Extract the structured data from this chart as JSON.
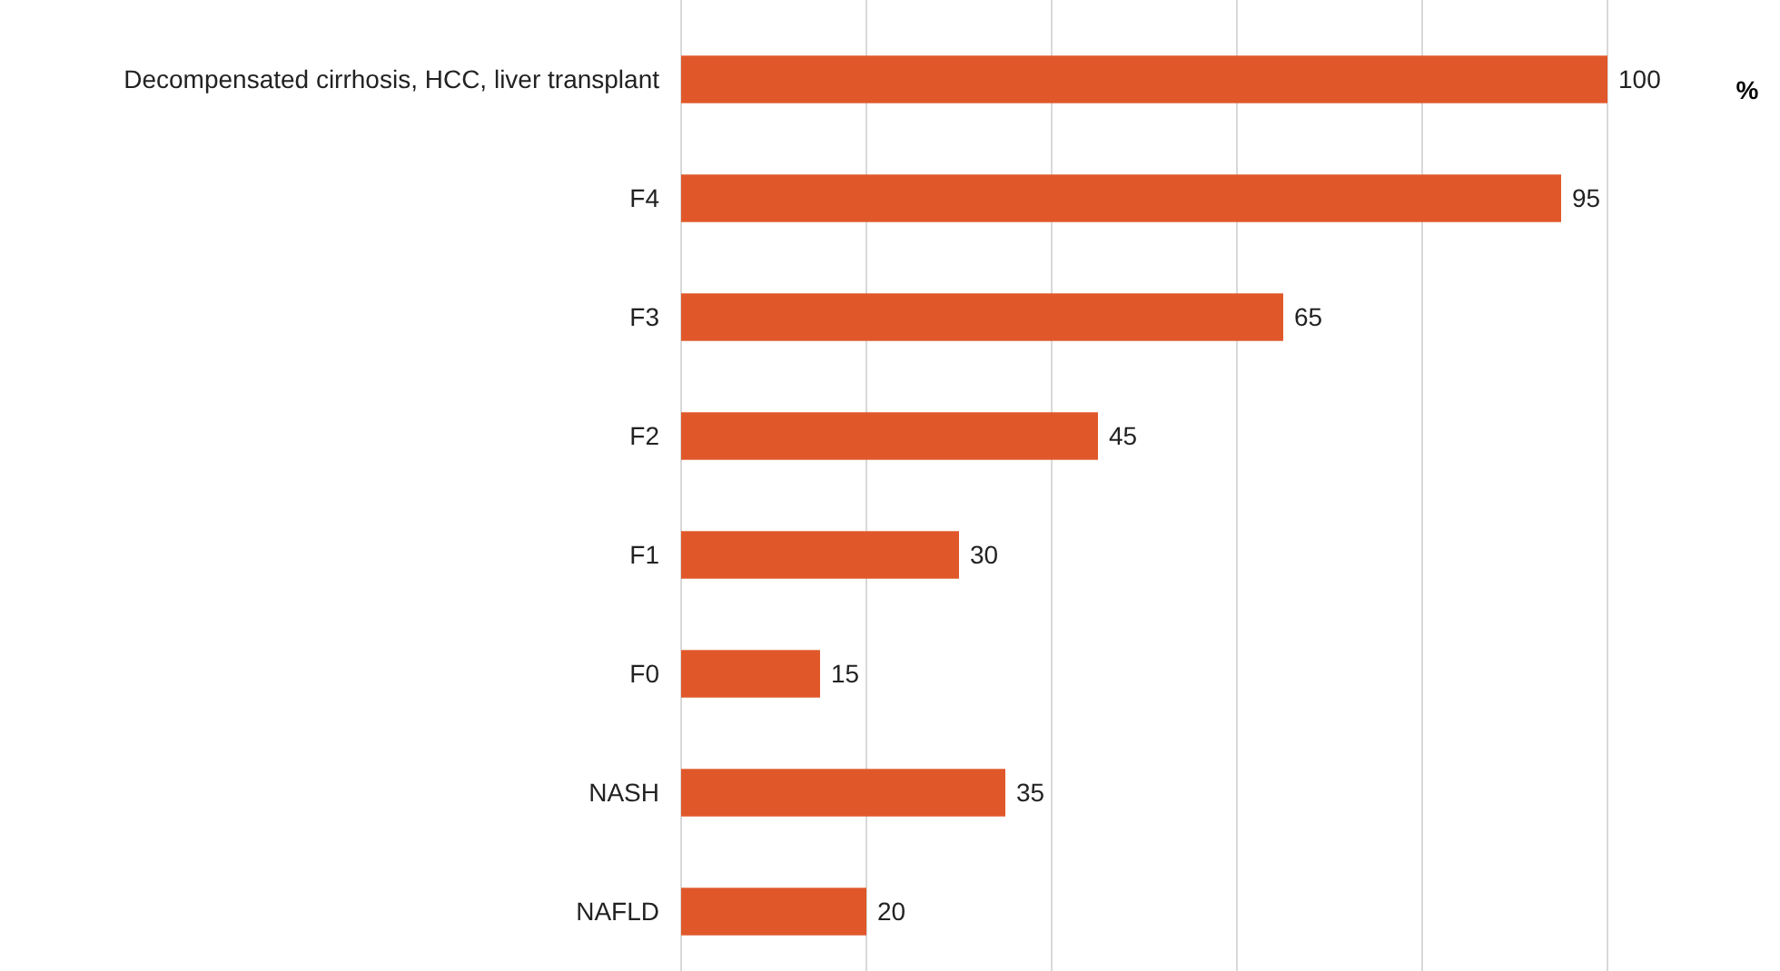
{
  "chart_data": {
    "type": "bar",
    "orientation": "horizontal",
    "annotations": [
      "%"
    ],
    "categories": [
      "Decompensated cirrhosis, HCC, liver transplant",
      "F4",
      "F3",
      "F2",
      "F1",
      "F0",
      "NASH",
      "NAFLD"
    ],
    "values": [
      100,
      95,
      65,
      45,
      30,
      15,
      35,
      20
    ],
    "color": "#e0582a",
    "xlim": [
      0,
      100
    ],
    "xticks": [
      {
        "value": 0,
        "label": null
      },
      {
        "value": 20,
        "label": null
      },
      {
        "value": 40,
        "label": null
      },
      {
        "value": 60,
        "label": null
      },
      {
        "value": 80,
        "label": null
      },
      {
        "value": 100,
        "label": null
      }
    ],
    "tick_labels": "y",
    "grid": "x",
    "data_labels": true
  }
}
